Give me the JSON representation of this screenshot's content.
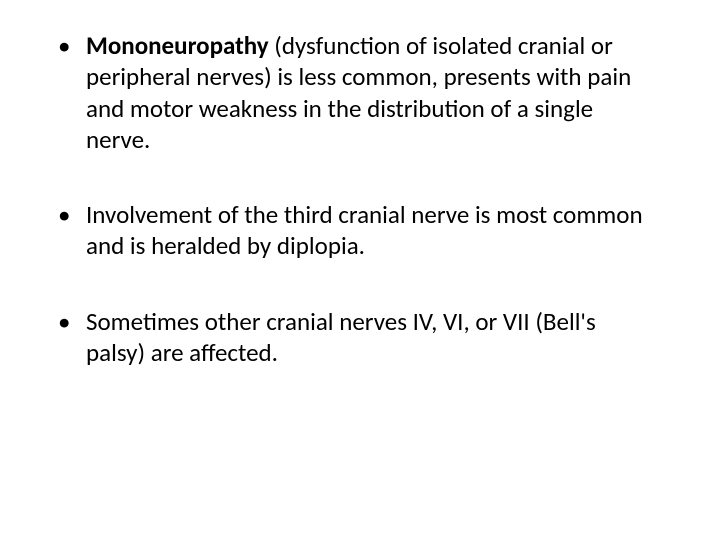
{
  "slide": {
    "background_color": "#ffffff",
    "text_color": "#000000",
    "font_family": "Calibri",
    "body_fontsize_pt": 25,
    "bullets": [
      {
        "bold_lead": "Mononeuropathy",
        "rest": " (dysfunction of isolated cranial or peripheral nerves) is less common, presents with pain and motor weakness in the distribution of a single nerve."
      },
      {
        "bold_lead": "",
        "rest": "Involvement of the third cranial nerve is most common and is heralded by diplopia."
      },
      {
        "bold_lead": "",
        "rest": "Sometimes other cranial nerves IV, VI, or VII (Bell's palsy) are affected."
      }
    ]
  }
}
